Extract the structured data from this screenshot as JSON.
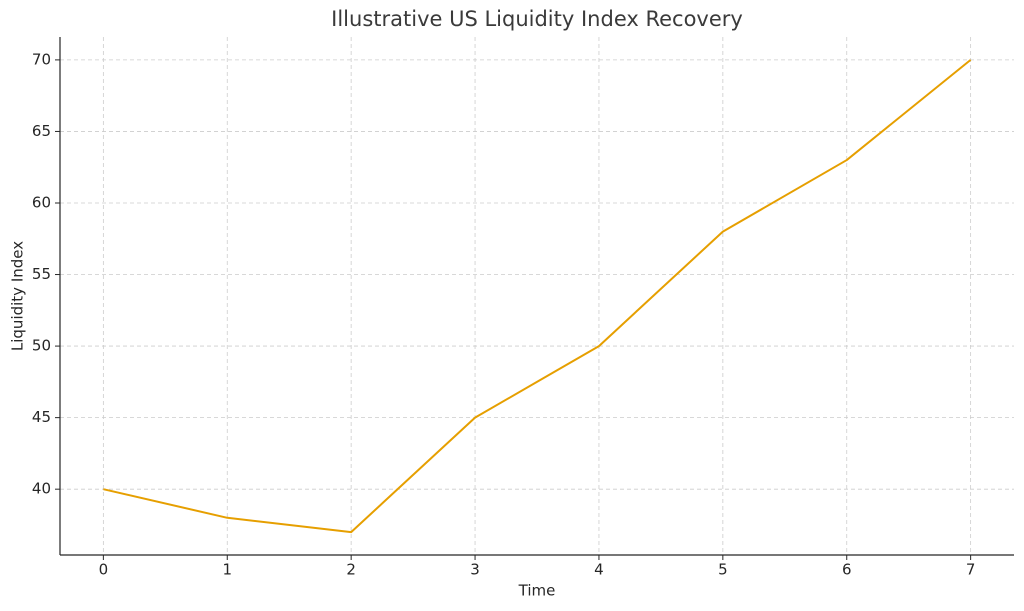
{
  "chart_data": {
    "type": "line",
    "title": "Illustrative US Liquidity Index Recovery",
    "x_label": "Time",
    "y_label": "Liquidity Index",
    "x": [
      0,
      1,
      2,
      3,
      4,
      5,
      6,
      7
    ],
    "series": [
      {
        "name": "Liquidity Index",
        "color": "#e69f00",
        "values": [
          40,
          38,
          37,
          45,
          50,
          58,
          63,
          70
        ]
      }
    ],
    "xlim": [
      -0.35,
      7.35
    ],
    "ylim": [
      35.4,
      71.6
    ],
    "xticks": [
      0,
      1,
      2,
      3,
      4,
      5,
      6,
      7
    ],
    "yticks": [
      40,
      45,
      50,
      55,
      60,
      65,
      70
    ],
    "grid": true
  }
}
